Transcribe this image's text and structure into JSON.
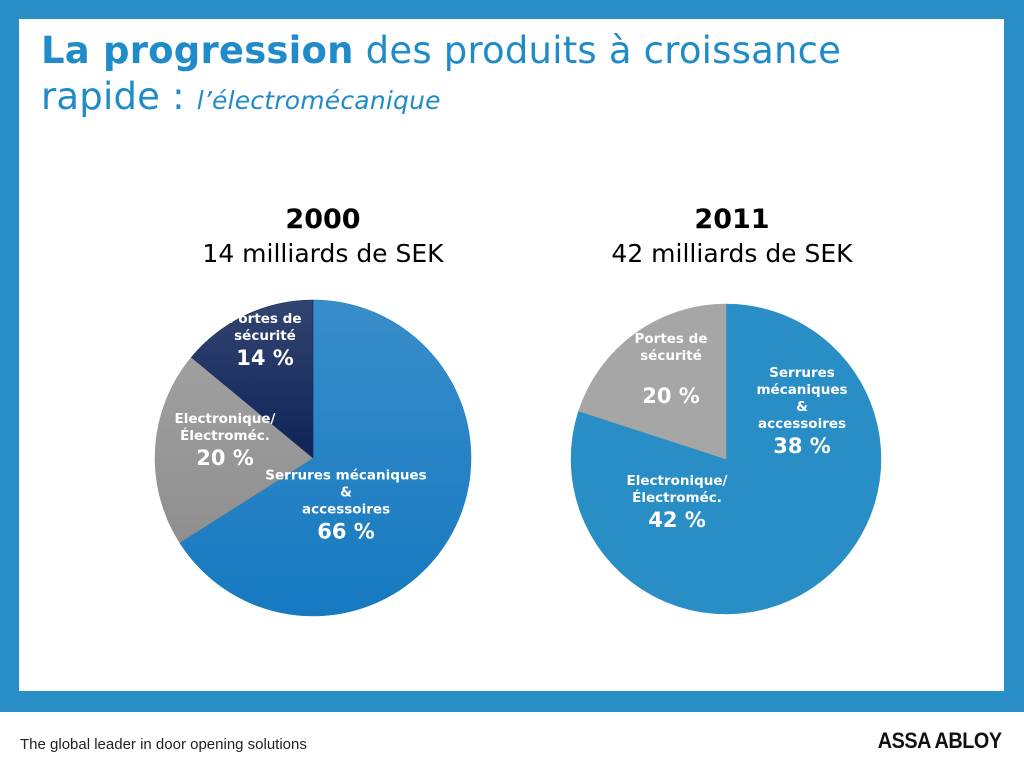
{
  "title": {
    "bold": "La progression",
    "rest": " des produits à croissance rapide : ",
    "italic": "l’électromécanique"
  },
  "footer": {
    "tagline": "The global leader in door opening solutions",
    "logo": "ASSA ABLOY"
  },
  "colors": {
    "frame": "#2a8ec6",
    "title": "#1f8bc9",
    "serrures_2000": "#1679c0",
    "serrures_2011": "#2a8ec6",
    "electro_2000": "#8f8f8f",
    "electro_2011": "#2a8ec6",
    "portes_2000": "#0e2357",
    "portes_2011": "#a6a6a6"
  },
  "chart_data": [
    {
      "type": "pie",
      "year": "2000",
      "total_label": "14 milliards de SEK",
      "slices": [
        {
          "lines": [
            "Serrures mécaniques",
            "&",
            "accessoires"
          ],
          "value_label": "66 %",
          "value": 66,
          "color": "#1679c0"
        },
        {
          "lines": [
            "Electronique/",
            "Électroméc."
          ],
          "value_label": "20 %",
          "value": 20,
          "color": "#8f8f8f"
        },
        {
          "lines": [
            "Portes de",
            "sécurité"
          ],
          "value_label": "14 %",
          "value": 14,
          "color": "#0e2357"
        }
      ]
    },
    {
      "type": "pie",
      "year": "2011",
      "total_label": "42 milliards de SEK",
      "slices": [
        {
          "lines": [
            "Serrures",
            "mécaniques",
            "&",
            "accessoires"
          ],
          "value_label": "38 %",
          "value": 38,
          "color": "#2a8ec6"
        },
        {
          "lines": [
            "Electronique/",
            "Électroméc."
          ],
          "value_label": "42 %",
          "value": 42,
          "color": "#2a8ec6"
        },
        {
          "lines": [
            "Portes de",
            "sécurité"
          ],
          "value_label": "20 %",
          "value": 20,
          "color": "#a6a6a6"
        }
      ]
    }
  ]
}
